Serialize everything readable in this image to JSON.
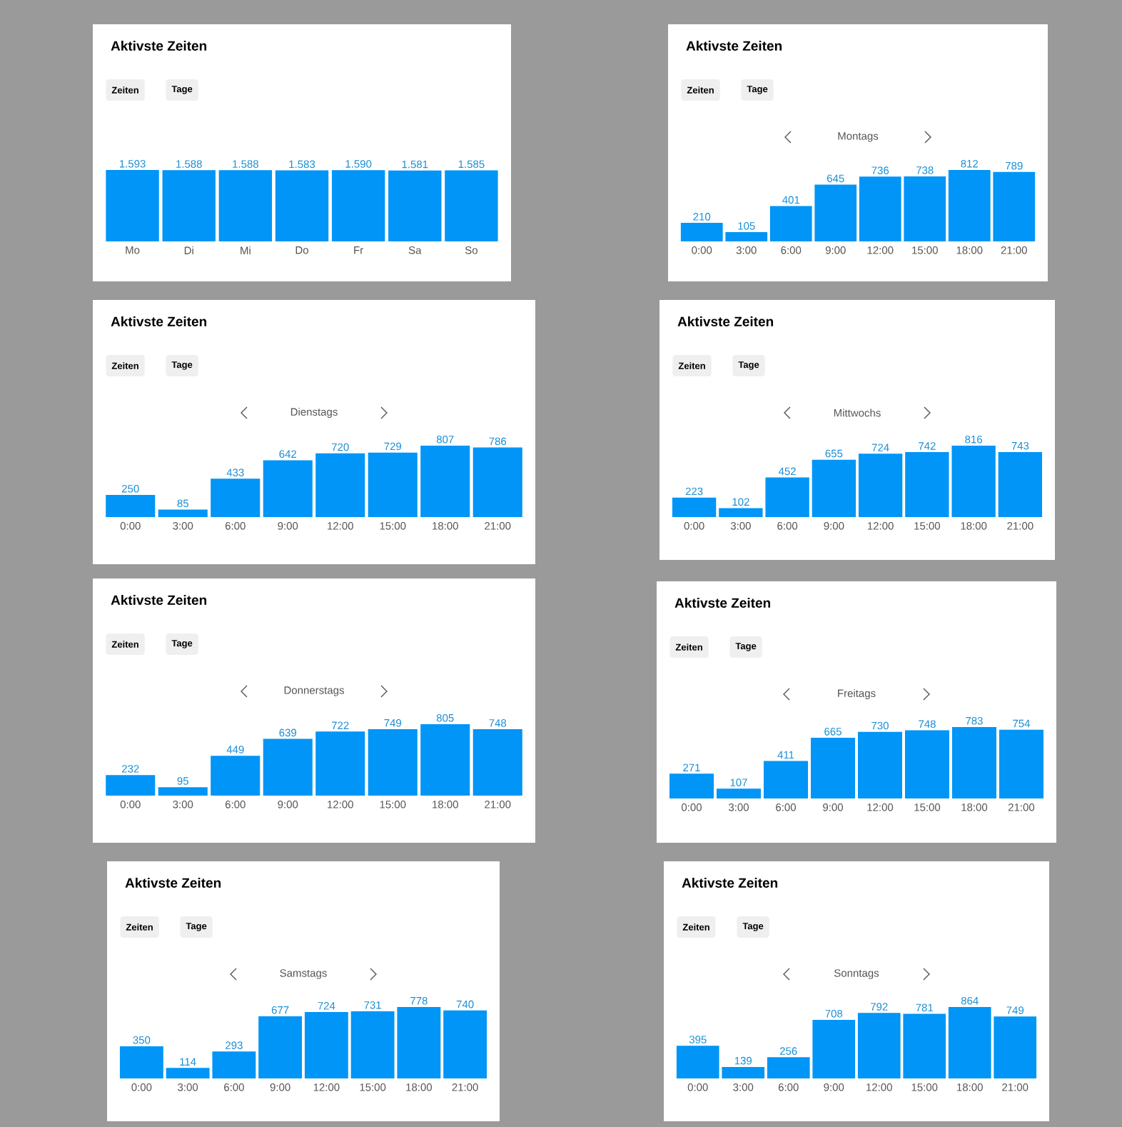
{
  "chart_data": [
    {
      "type": "bar",
      "title": "Aktivste Zeiten",
      "annotations": [
        "Zeiten",
        "Tage"
      ],
      "categories": [
        "Mo",
        "Di",
        "Mi",
        "Do",
        "Fr",
        "Sa",
        "So"
      ],
      "values": [
        1593,
        1588,
        1588,
        1583,
        1590,
        1581,
        1585
      ],
      "value_labels": [
        "1.593",
        "1.588",
        "1.588",
        "1.583",
        "1.590",
        "1.581",
        "1.585"
      ],
      "color": "#0095f6"
    },
    {
      "type": "bar",
      "title": "Aktivste Zeiten",
      "subtitle": "Montags",
      "annotations": [
        "Zeiten",
        "Tage"
      ],
      "categories": [
        "0:00",
        "3:00",
        "6:00",
        "9:00",
        "12:00",
        "15:00",
        "18:00",
        "21:00"
      ],
      "values": [
        210,
        105,
        401,
        645,
        736,
        738,
        812,
        789
      ],
      "data_labels": true,
      "color": "#0095f6"
    },
    {
      "type": "bar",
      "title": "Aktivste Zeiten",
      "subtitle": "Dienstags",
      "annotations": [
        "Zeiten",
        "Tage"
      ],
      "categories": [
        "0:00",
        "3:00",
        "6:00",
        "9:00",
        "12:00",
        "15:00",
        "18:00",
        "21:00"
      ],
      "values": [
        250,
        85,
        433,
        642,
        720,
        729,
        807,
        786
      ],
      "data_labels": true,
      "color": "#0095f6"
    },
    {
      "type": "bar",
      "title": "Aktivste Zeiten",
      "subtitle": "Mittwochs",
      "annotations": [
        "Zeiten",
        "Tage"
      ],
      "categories": [
        "0:00",
        "3:00",
        "6:00",
        "9:00",
        "12:00",
        "15:00",
        "18:00",
        "21:00"
      ],
      "values": [
        223,
        102,
        452,
        655,
        724,
        742,
        816,
        743
      ],
      "data_labels": true,
      "color": "#0095f6"
    },
    {
      "type": "bar",
      "title": "Aktivste Zeiten",
      "subtitle": "Donnerstags",
      "annotations": [
        "Zeiten",
        "Tage"
      ],
      "categories": [
        "0:00",
        "3:00",
        "6:00",
        "9:00",
        "12:00",
        "15:00",
        "18:00",
        "21:00"
      ],
      "values": [
        232,
        95,
        449,
        639,
        722,
        749,
        805,
        748
      ],
      "data_labels": true,
      "color": "#0095f6"
    },
    {
      "type": "bar",
      "title": "Aktivste Zeiten",
      "subtitle": "Freitags",
      "annotations": [
        "Zeiten",
        "Tage"
      ],
      "categories": [
        "0:00",
        "3:00",
        "6:00",
        "9:00",
        "12:00",
        "15:00",
        "18:00",
        "21:00"
      ],
      "values": [
        271,
        107,
        411,
        665,
        730,
        748,
        783,
        754
      ],
      "data_labels": true,
      "color": "#0095f6"
    },
    {
      "type": "bar",
      "title": "Aktivste Zeiten",
      "subtitle": "Samstags",
      "annotations": [
        "Zeiten",
        "Tage"
      ],
      "categories": [
        "0:00",
        "3:00",
        "6:00",
        "9:00",
        "12:00",
        "15:00",
        "18:00",
        "21:00"
      ],
      "values": [
        350,
        114,
        293,
        677,
        724,
        731,
        778,
        740
      ],
      "data_labels": true,
      "color": "#0095f6"
    },
    {
      "type": "bar",
      "title": "Aktivste Zeiten",
      "subtitle": "Sonntags",
      "annotations": [
        "Zeiten",
        "Tage"
      ],
      "categories": [
        "0:00",
        "3:00",
        "6:00",
        "9:00",
        "12:00",
        "15:00",
        "18:00",
        "21:00"
      ],
      "values": [
        395,
        139,
        256,
        708,
        792,
        781,
        864,
        749
      ],
      "data_labels": true,
      "color": "#0095f6"
    }
  ]
}
